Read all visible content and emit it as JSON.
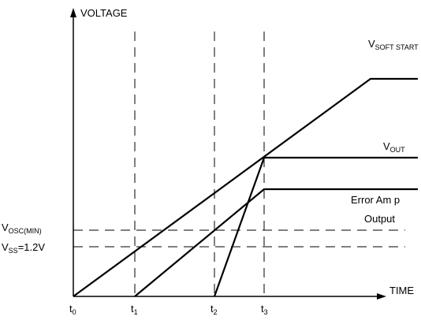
{
  "axes": {
    "y_label": "VOLTAGE",
    "x_label": "TIME"
  },
  "time_marks": [
    {
      "main": "t",
      "sub": "0"
    },
    {
      "main": "t",
      "sub": "1"
    },
    {
      "main": "t",
      "sub": "2"
    },
    {
      "main": "t",
      "sub": "3"
    }
  ],
  "curves": {
    "soft_start": {
      "main": "V",
      "sub": "SOFT START"
    },
    "vout": {
      "main": "V",
      "sub": "OUT"
    },
    "error_amp": {
      "lines": [
        "Error Am p",
        "Output"
      ]
    }
  },
  "levels": {
    "vosc": {
      "main": "V",
      "sub": "OSC(MIN)"
    },
    "vss": {
      "main": "V",
      "sub": "SS",
      "rest": "=1.2V"
    }
  }
}
